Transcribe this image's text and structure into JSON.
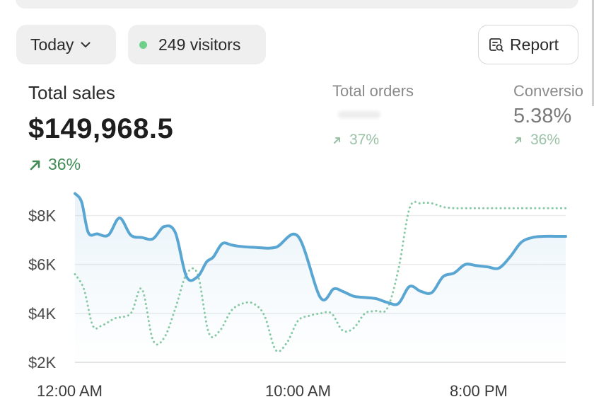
{
  "filters": {
    "date_range": "Today",
    "live_visitors": "249 visitors",
    "live_dot_color": "#6fd08c"
  },
  "actions": {
    "report_label": "Report"
  },
  "metrics": {
    "total_sales": {
      "label": "Total sales",
      "value": "$149,968.5",
      "delta": "36%"
    },
    "total_orders": {
      "label": "Total orders",
      "delta": "37%"
    },
    "conversion": {
      "label": "Conversio",
      "value": "5.38%",
      "delta": "36%"
    }
  },
  "colors": {
    "primary_line": "#5aa6d3",
    "comparison_line": "#86c9a4",
    "delta_green": "#3f8a55"
  },
  "chart_data": {
    "type": "line",
    "ylim": [
      2000,
      9000
    ],
    "y_ticks": [
      8000,
      6000,
      4000,
      2000
    ],
    "y_tick_labels": [
      "$8K",
      "$6K",
      "$4K",
      "$2K"
    ],
    "x_tick_labels": [
      "12:00 AM",
      "10:00 AM",
      "8:00 PM"
    ],
    "x_tick_positions": [
      0,
      10,
      20
    ],
    "xlim": [
      0,
      22
    ],
    "grid": true,
    "series": [
      {
        "style": "solid",
        "x": [
          0,
          0.3,
          0.6,
          1,
          1.5,
          2,
          2.5,
          3,
          3.5,
          4,
          4.5,
          5,
          5.5,
          5.9,
          6.2,
          6.6,
          7,
          7.3,
          8,
          9,
          10,
          11,
          11.6,
          12,
          12.5,
          13,
          13.5,
          14,
          14.5,
          15,
          15.5,
          16,
          16.5,
          17,
          17.5,
          18,
          18.5,
          19,
          19.5,
          20,
          20.5,
          21,
          21.5,
          22
        ],
        "values": [
          8900,
          8550,
          7300,
          7250,
          7200,
          7900,
          7200,
          7100,
          7050,
          7550,
          7300,
          5500,
          5500,
          6100,
          6300,
          6850,
          6800,
          6750,
          6700,
          6700,
          7150,
          4650,
          5000,
          4900,
          4700,
          4650,
          4600,
          4450,
          4400,
          5100,
          4900,
          4850,
          5500,
          5650,
          6000,
          5950,
          5900,
          5850,
          6300,
          6900,
          7100,
          7150,
          7150,
          7150
        ]
      },
      {
        "style": "dotted",
        "x": [
          0,
          0.4,
          0.8,
          1.2,
          1.8,
          2.5,
          3,
          3.5,
          4,
          4.5,
          5,
          5.5,
          6,
          6.5,
          7,
          7.5,
          8,
          8.5,
          9,
          9.5,
          10,
          10.5,
          11,
          11.5,
          12,
          12.5,
          13,
          13.5,
          14,
          14.5,
          15,
          15.5,
          16,
          16.5,
          17,
          17.5,
          18,
          18.5,
          19,
          19.5,
          20,
          20.5,
          21,
          21.5,
          22
        ],
        "values": [
          5600,
          5000,
          3500,
          3500,
          3800,
          4000,
          5000,
          2900,
          3000,
          4200,
          5600,
          5600,
          3200,
          3300,
          4100,
          4400,
          4400,
          3900,
          2500,
          2800,
          3700,
          3900,
          4000,
          4000,
          3300,
          3400,
          4000,
          4100,
          4200,
          5800,
          8300,
          8500,
          8500,
          8350,
          8300,
          8300,
          8300,
          8300,
          8300,
          8300,
          8300,
          8300,
          8300,
          8300,
          8300
        ]
      }
    ]
  }
}
